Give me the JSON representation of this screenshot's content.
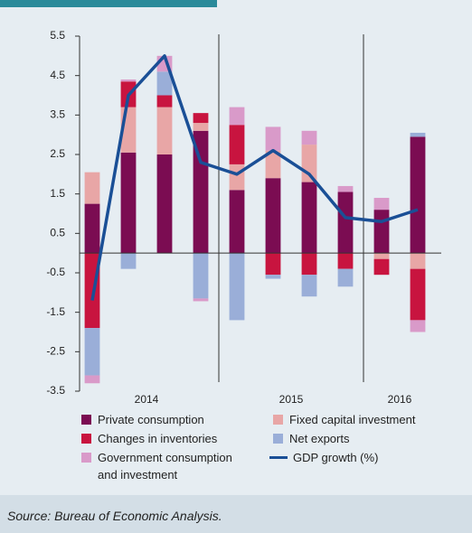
{
  "chart_data": {
    "type": "bar",
    "stacked": true,
    "source": "Source: Bureau of Economic Analysis.",
    "categories": [
      null,
      null,
      null,
      null,
      null,
      null,
      null,
      null,
      null,
      null
    ],
    "x_groups": [
      "2014",
      "2015",
      "2016"
    ],
    "x_group_sizes": [
      4,
      4,
      2
    ],
    "ylim": [
      -3.5,
      5.5
    ],
    "yticks": [
      5.5,
      4.5,
      3.5,
      2.5,
      1.5,
      0.5,
      -0.5,
      -1.5,
      -2.5,
      -3.5
    ],
    "series": [
      {
        "name": "Private consumption",
        "type": "bar",
        "color": "#7b0c52",
        "values": [
          1.25,
          2.55,
          2.5,
          3.1,
          1.6,
          1.9,
          1.8,
          1.55,
          1.1,
          2.95
        ]
      },
      {
        "name": "Fixed capital investment",
        "type": "bar",
        "color": "#e8a6a6",
        "values": [
          0.8,
          1.15,
          1.2,
          0.2,
          0.65,
          0.7,
          0.95,
          0,
          -0.15,
          -0.4
        ]
      },
      {
        "name": "Changes in inventories",
        "type": "bar",
        "color": "#c8143f",
        "values": [
          -1.9,
          0.65,
          0.3,
          0.25,
          1.0,
          -0.55,
          -0.55,
          -0.4,
          -0.4,
          -1.3
        ]
      },
      {
        "name": "Net exports",
        "type": "bar",
        "color": "#9aaed8",
        "values": [
          -1.2,
          -0.4,
          0.6,
          -1.15,
          -1.7,
          -0.1,
          -0.55,
          -0.45,
          0,
          0.1
        ]
      },
      {
        "name": "Government consumption and investment",
        "type": "bar",
        "color": "#d99ac9",
        "values": [
          -0.2,
          0.05,
          0.4,
          -0.07,
          0.45,
          0.6,
          0.35,
          0.15,
          0.3,
          -0.3
        ]
      },
      {
        "name": "GDP growth (%)",
        "type": "line",
        "color": "#1a4f96",
        "values": [
          -1.2,
          4.0,
          5.0,
          2.3,
          2.0,
          2.6,
          2.0,
          0.9,
          0.8,
          1.1
        ]
      }
    ]
  }
}
